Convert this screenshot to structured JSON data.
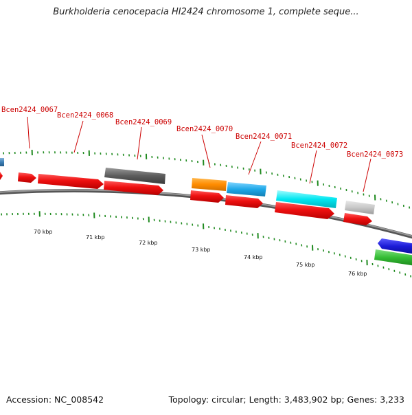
{
  "header": {
    "title": "Burkholderia cenocepacia HI2424 chromosome 1, complete seque..."
  },
  "footer": {
    "accession": "Accession: NC_008542",
    "summary": "Topology: circular; Length: 3,483,902 bp; Genes: 3,233"
  },
  "gene_labels": [
    "Bcen2424_0067",
    "Bcen2424_0068",
    "Bcen2424_0069",
    "Bcen2424_0070",
    "Bcen2424_0071",
    "Bcen2424_0072",
    "Bcen2424_0073"
  ],
  "scale_labels": [
    "70 kbp",
    "71 kbp",
    "72 kbp",
    "73 kbp",
    "74 kbp",
    "75 kbp",
    "76 kbp"
  ],
  "colors": {
    "label": "#cc0000",
    "tick": "#1f8a1f",
    "backbone": "#808080",
    "cds_red": "#ee1111",
    "gray_feature": "#5a5a5a",
    "orange_feature": "#ff8c00",
    "skyblue_feature": "#1ea8e8",
    "cyan_feature": "#00e6f0",
    "lightgray_feature": "#c8c8c8",
    "blue_feature": "#1b1bd6",
    "green_feature": "#33bb33",
    "steelblue_feature": "#3d7fb5"
  }
}
